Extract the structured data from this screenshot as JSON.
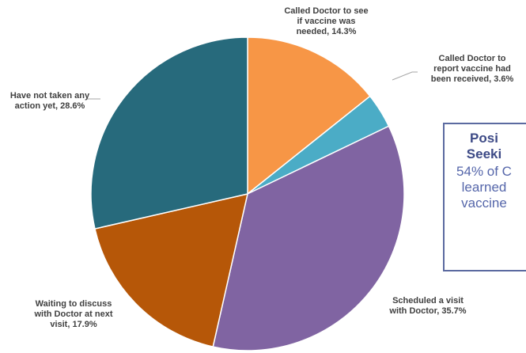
{
  "chart_data": {
    "type": "pie",
    "slices": [
      {
        "label": "Called Doctor to see\nif vaccine was\nneeded, 14.3%",
        "category": "Called Doctor to see if vaccine was needed",
        "value": 14.3,
        "color": "#f79646"
      },
      {
        "label": "Called Doctor to\nreport vaccine had\nbeen received, 3.6%",
        "category": "Called Doctor to report vaccine had been received",
        "value": 3.6,
        "color": "#4bacc6"
      },
      {
        "label": "Scheduled a visit\nwith Doctor, 35.7%",
        "category": "Scheduled a visit with Doctor",
        "value": 35.7,
        "color": "#8064a2"
      },
      {
        "label": "Waiting to discuss\nwith Doctor at next\nvisit, 17.9%",
        "category": "Waiting to discuss with Doctor at next visit",
        "value": 17.9,
        "color": "#b65708"
      },
      {
        "label": "Have not taken any\naction yet, 28.6%",
        "category": "Have not taken any action yet",
        "value": 28.6,
        "color": "#276a7c"
      }
    ],
    "title": "",
    "legend": "none"
  },
  "callout": {
    "title": "Posi\nSeeki",
    "body": "54% of C\nlearned\nvaccine"
  },
  "colors": {
    "callout_border": "#5b6aa0",
    "callout_title": "#3d4a86",
    "callout_text": "#5566aa",
    "label_text": "#404040"
  }
}
